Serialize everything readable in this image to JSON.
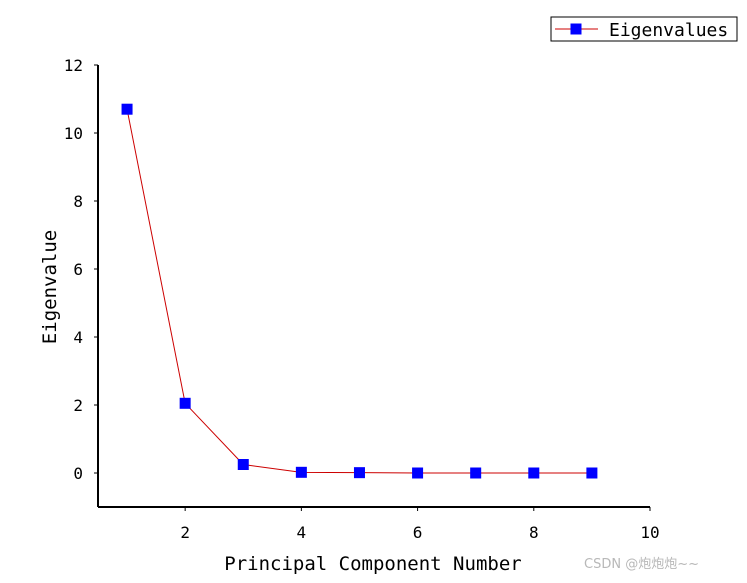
{
  "chart_data": {
    "type": "line",
    "title": "",
    "xlabel": "Principal Component Number",
    "ylabel": "Eigenvalue",
    "xlim": [
      0.5,
      10
    ],
    "ylim": [
      -1,
      12
    ],
    "x_ticks": [
      2,
      4,
      6,
      8,
      10
    ],
    "y_ticks": [
      0,
      2,
      4,
      6,
      8,
      10,
      12
    ],
    "grid": false,
    "legend_position": "top-right",
    "series": [
      {
        "name": "Eigenvalues",
        "line_color": "#cc0000",
        "marker_color": "#0000ff",
        "marker": "square",
        "x": [
          1,
          2,
          3,
          4,
          5,
          6,
          7,
          8,
          9
        ],
        "y": [
          10.7,
          2.05,
          0.25,
          0.02,
          0.01,
          0.0,
          0.0,
          0.0,
          0.0
        ]
      }
    ]
  },
  "watermark": "CSDN @炮炮炮~~"
}
